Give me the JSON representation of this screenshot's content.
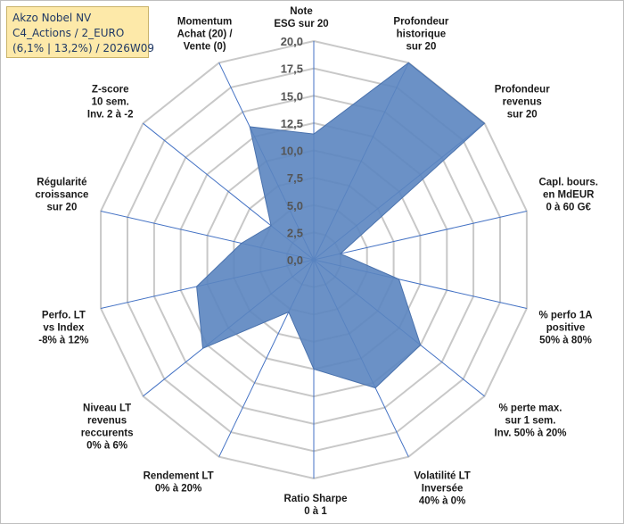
{
  "title_box": {
    "line1": "Akzo Nobel NV",
    "line2": "C4_Actions / 2_EURO",
    "line3": "(6,1% | 13,2%) / 2026W09"
  },
  "colors": {
    "fill": "#5b85c0",
    "stroke": "#4a72ad",
    "grid": "#c8c8c8",
    "spoke": "#4472c4",
    "title_bg": "#fde9a9"
  },
  "chart_data": {
    "type": "radar",
    "title": "Akzo Nobel NV",
    "rmin": 0,
    "rmax": 20,
    "ticks": [
      "0,0",
      "2,5",
      "5,0",
      "7,5",
      "10,0",
      "12,5",
      "15,0",
      "17,5",
      "20,0"
    ],
    "axes": [
      {
        "label": [
          "Note",
          "ESG sur 20"
        ],
        "value": 11.5
      },
      {
        "label": [
          "Profondeur",
          "historique",
          "sur 20"
        ],
        "value": 20.0
      },
      {
        "label": [
          "Profondeur",
          "revenus",
          "sur 20"
        ],
        "value": 20.0
      },
      {
        "label": [
          "Capl. bours.",
          "en MdEUR",
          "0 à 60 G€"
        ],
        "value": 2.5
      },
      {
        "label": [
          "% perfo 1A",
          "positive",
          "50% à 80%"
        ],
        "value": 8.0
      },
      {
        "label": [
          "% perte max.",
          "sur 1 sem.",
          "Inv. 50% à 20%"
        ],
        "value": 12.5
      },
      {
        "label": [
          "Volatilité LT",
          "Inversée",
          "40% à 0%"
        ],
        "value": 13.0
      },
      {
        "label": [
          "Ratio Sharpe",
          "0 à 1"
        ],
        "value": 10.0
      },
      {
        "label": [
          "Rendement LT",
          "0% à 20%"
        ],
        "value": 5.3
      },
      {
        "label": [
          "Niveau LT",
          "revenus",
          "reccurents",
          "0% à 6%"
        ],
        "value": 13.0
      },
      {
        "label": [
          "Perfo. LT",
          "vs Index",
          "-8% à 12%"
        ],
        "value": 11.0
      },
      {
        "label": [
          "Régularité",
          "croissance",
          "sur 20"
        ],
        "value": 6.8
      },
      {
        "label": [
          "Z-score",
          "10 sem.",
          "Inv. 2 à -2"
        ],
        "value": 5.0
      },
      {
        "label": [
          "Momentum",
          "Achat (20) /",
          "Vente (0)"
        ],
        "value": 13.5
      }
    ]
  }
}
